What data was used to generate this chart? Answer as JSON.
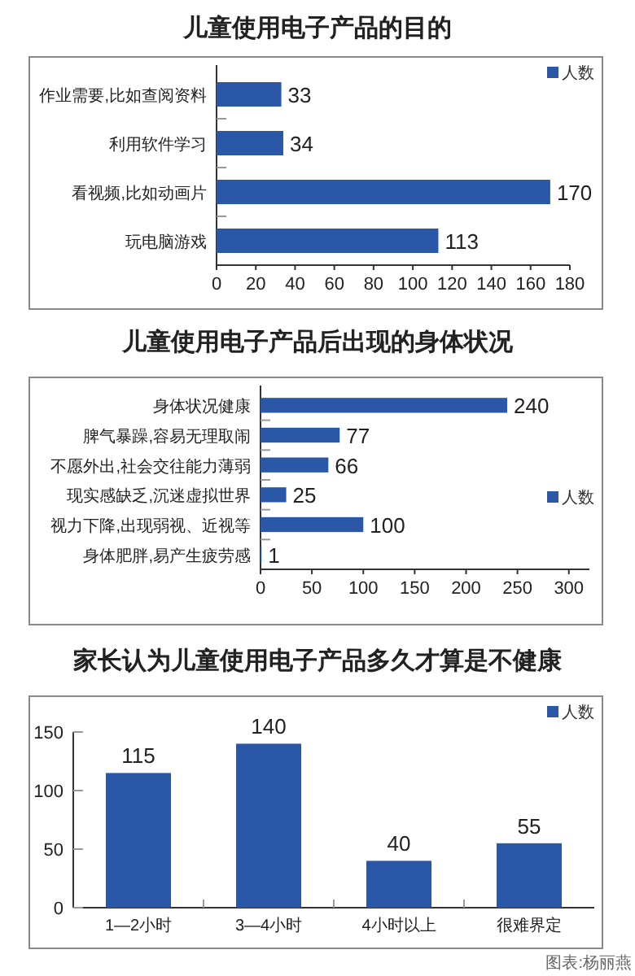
{
  "chart_data": [
    {
      "type": "bar",
      "orientation": "horizontal",
      "title": "儿童使用电子产品的目的",
      "categories": [
        "作业需要,比如查阅资料",
        "利用软件学习",
        "看视频,比如动画片",
        "玩电脑游戏"
      ],
      "series": [
        {
          "name": "人数",
          "color": "#2a58a6",
          "values": [
            33,
            34,
            170,
            113
          ]
        }
      ],
      "xlim": [
        0,
        180
      ],
      "xticks": [
        0,
        20,
        40,
        60,
        80,
        100,
        120,
        140,
        160,
        180
      ],
      "data_labels": true,
      "legend": "top right"
    },
    {
      "type": "bar",
      "orientation": "horizontal",
      "title": "儿童使用电子产品后出现的身体状况",
      "categories": [
        "身体状况健康",
        "脾气暴躁,容易无理取闹",
        "不愿外出,社会交往能力薄弱",
        "现实感缺乏,沉迷虚拟世界",
        "视力下降,出现弱视、近视等",
        "身体肥胖,易产生疲劳感"
      ],
      "series": [
        {
          "name": "人数",
          "color": "#2a58a6",
          "values": [
            240,
            77,
            66,
            25,
            100,
            1
          ]
        }
      ],
      "xlim": [
        0,
        320
      ],
      "xticks": [
        0,
        50,
        100,
        150,
        200,
        250,
        300
      ],
      "data_labels": true,
      "legend": "right"
    },
    {
      "type": "bar",
      "title": "家长认为儿童使用电子产品多久才算是不健康",
      "categories": [
        "1—2小时",
        "3—4小时",
        "4小时以上",
        "很难界定"
      ],
      "series": [
        {
          "name": "人数",
          "color": "#2a58a6",
          "values": [
            115,
            140,
            40,
            55
          ]
        }
      ],
      "ylim": [
        0,
        150
      ],
      "yticks": [
        0,
        50,
        100,
        150
      ],
      "data_labels": true,
      "legend": "top right",
      "annotations": [
        "图表:杨丽燕"
      ]
    }
  ]
}
